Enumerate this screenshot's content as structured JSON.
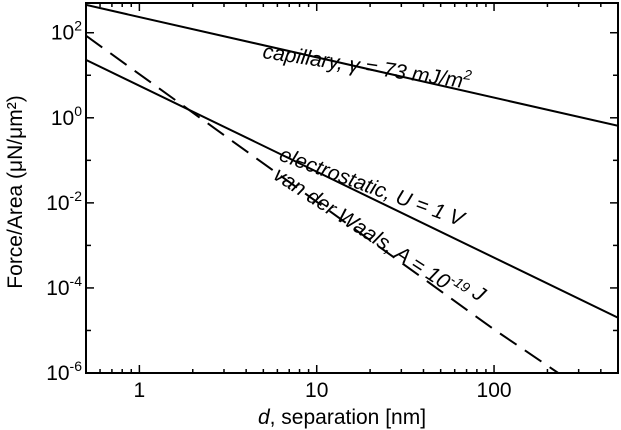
{
  "chart_data": {
    "type": "line",
    "xlabel_italic": "d",
    "xlabel_rest": ", separation [nm]",
    "ylabel": "Force/Area (μN/μm²)",
    "x_scale": "log",
    "y_scale": "log",
    "xlim": [
      0.5,
      500
    ],
    "ylim": [
      1e-06,
      500
    ],
    "grid": false,
    "x_ticks": [
      {
        "value": 1,
        "label": "1"
      },
      {
        "value": 10,
        "label": "10"
      },
      {
        "value": 100,
        "label": "100"
      }
    ],
    "y_ticks": [
      {
        "value": 100,
        "base": "10",
        "exp": "2"
      },
      {
        "value": 1,
        "base": "10",
        "exp": "0"
      },
      {
        "value": 0.01,
        "base": "10",
        "exp": "-2"
      },
      {
        "value": 0.0001,
        "base": "10",
        "exp": "-4"
      },
      {
        "value": 1e-06,
        "base": "10",
        "exp": "-6"
      }
    ],
    "series": [
      {
        "id": "capillary",
        "line_style": "solid",
        "x": [
          0.5,
          500
        ],
        "y": [
          450,
          0.65
        ],
        "label_parts": [
          {
            "t": "capillary, γ = 73 mJ/m"
          },
          {
            "t": "2",
            "sup": true
          }
        ]
      },
      {
        "id": "electrostatic",
        "line_style": "solid",
        "x": [
          0.5,
          500
        ],
        "y": [
          23,
          2e-05
        ],
        "label_parts": [
          {
            "t": "electrostatic, "
          },
          {
            "t": "U",
            "italic": true
          },
          {
            "t": " = 1 V"
          }
        ]
      },
      {
        "id": "van-der-waals",
        "line_style": "dashed",
        "x": [
          0.5,
          1,
          10,
          100,
          230
        ],
        "y": [
          85,
          10.6,
          0.0106,
          1.06e-05,
          1e-06
        ],
        "label_parts": [
          {
            "t": "van der Waals, "
          },
          {
            "t": "A",
            "italic": true
          },
          {
            "t": " = 10"
          },
          {
            "t": "-19",
            "sup": true
          },
          {
            "t": " J"
          }
        ]
      }
    ]
  }
}
